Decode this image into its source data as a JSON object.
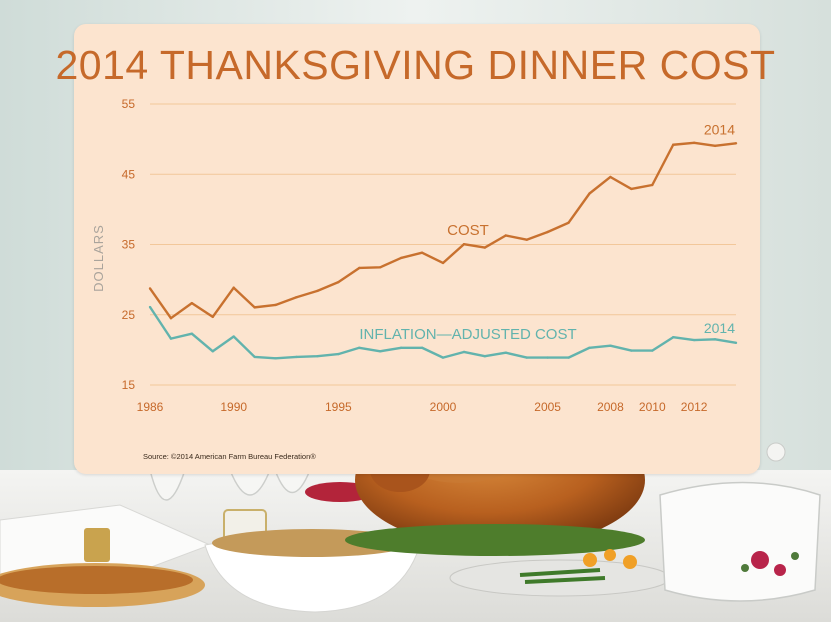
{
  "title": "2014 THANKSGIVING DINNER COST",
  "source": "Source: ©2014 American Farm Bureau Federation®",
  "colors": {
    "cost": "#c8712f",
    "inflation": "#62b3ad",
    "grid": "#f2c79a",
    "panel": "#fce4cf",
    "accent": "#c6692a"
  },
  "chart_data": {
    "type": "line",
    "title": "2014 THANKSGIVING DINNER COST",
    "xlabel": "",
    "ylabel": "DOLLARS",
    "ylim": [
      15,
      55
    ],
    "yticks": [
      15,
      25,
      35,
      45,
      55
    ],
    "xlim": [
      1986,
      2014
    ],
    "xtick_labels": [
      "1986",
      "1990",
      "1995",
      "2000",
      "2005",
      "2008",
      "2010",
      "2012"
    ],
    "grid": true,
    "x": [
      1986,
      1987,
      1988,
      1989,
      1990,
      1991,
      1992,
      1993,
      1994,
      1995,
      1996,
      1997,
      1998,
      1999,
      2000,
      2001,
      2002,
      2003,
      2004,
      2005,
      2006,
      2007,
      2008,
      2009,
      2010,
      2011,
      2012,
      2013,
      2014
    ],
    "series": [
      {
        "name": "COST",
        "end_label": "2014",
        "values": [
          28.74,
          24.51,
          26.65,
          24.7,
          28.85,
          26.05,
          26.39,
          27.49,
          28.4,
          29.64,
          31.66,
          31.75,
          33.09,
          33.83,
          32.37,
          35.04,
          34.56,
          36.28,
          35.68,
          36.78,
          38.1,
          42.26,
          44.61,
          42.91,
          43.47,
          49.2,
          49.48,
          49.04,
          49.41
        ]
      },
      {
        "name": "INFLATION—ADJUSTED COST",
        "end_label": "2014",
        "values": [
          26.1,
          21.6,
          22.3,
          19.8,
          21.9,
          19.0,
          18.8,
          19.0,
          19.1,
          19.4,
          20.3,
          19.8,
          20.3,
          20.3,
          18.9,
          19.7,
          19.1,
          19.6,
          18.9,
          18.9,
          18.9,
          20.3,
          20.6,
          19.9,
          19.9,
          21.8,
          21.4,
          21.5,
          21.0
        ]
      }
    ]
  }
}
